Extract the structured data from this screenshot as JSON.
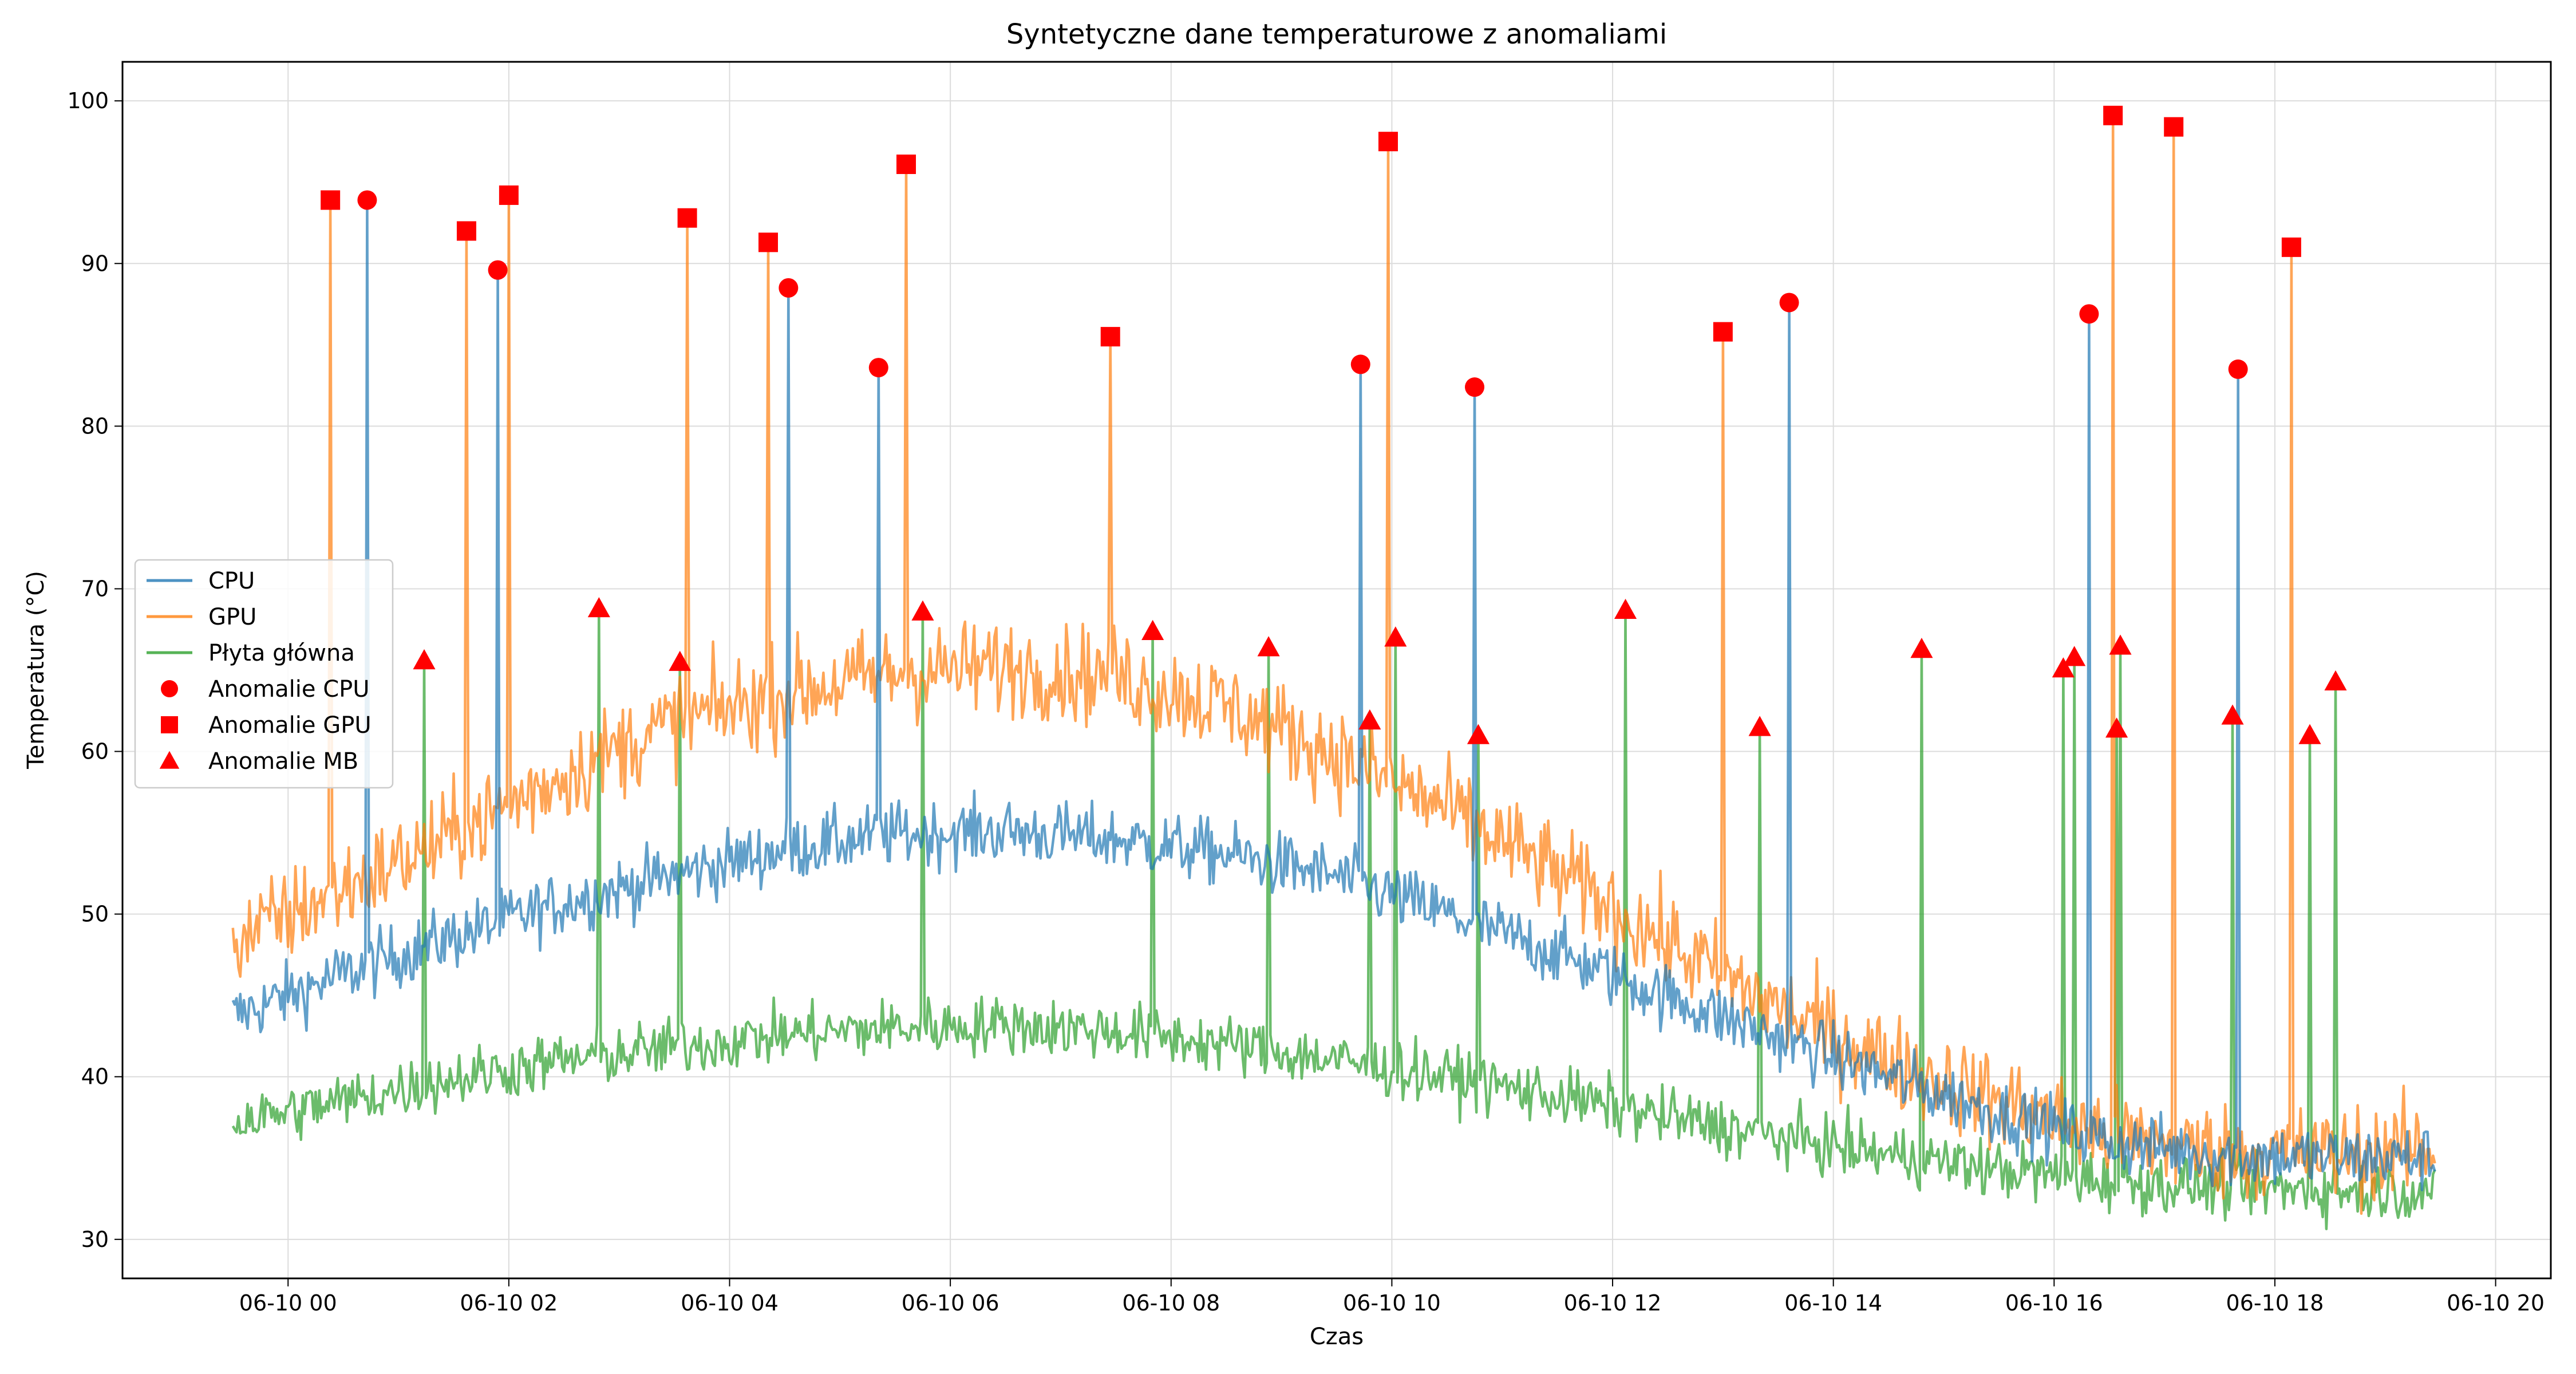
{
  "chart_data": {
    "type": "line",
    "title": "Syntetyczne dane temperaturowe z anomaliami",
    "xlabel": "Czas",
    "ylabel": "Temperatura (°C)",
    "xlim": [
      "06-09 22:30",
      "06-10 20:30"
    ],
    "ylim": [
      27.6,
      102.4
    ],
    "x_ticks": [
      "06-10 00",
      "06-10 02",
      "06-10 04",
      "06-10 06",
      "06-10 08",
      "06-10 10",
      "06-10 12",
      "06-10 14",
      "06-10 16",
      "06-10 18",
      "06-10 20"
    ],
    "y_ticks": [
      "30",
      "40",
      "50",
      "60",
      "70",
      "80",
      "90",
      "100"
    ],
    "grid": true,
    "legend_position": "center-left",
    "series": [
      {
        "name": "CPU",
        "color": "#1f77b4",
        "baseline": [
          [
            "06-09 23:30",
            43.7
          ],
          [
            "06-10 00:30",
            46.3
          ],
          [
            "06-10 01:30",
            48.6
          ],
          [
            "06-10 02:30",
            50.7
          ],
          [
            "06-10 03:30",
            52.4
          ],
          [
            "06-10 04:30",
            54.0
          ],
          [
            "06-10 05:30",
            54.9
          ],
          [
            "06-10 06:30",
            55.1
          ],
          [
            "06-10 07:30",
            54.6
          ],
          [
            "06-10 08:30",
            53.7
          ],
          [
            "06-10 09:30",
            52.3
          ],
          [
            "06-10 10:30",
            50.0
          ],
          [
            "06-10 11:30",
            47.6
          ],
          [
            "06-10 12:30",
            44.9
          ],
          [
            "06-10 13:30",
            42.4
          ],
          [
            "06-10 14:30",
            40.0
          ],
          [
            "06-10 15:30",
            37.8
          ],
          [
            "06-10 16:30",
            36.0
          ],
          [
            "06-10 17:30",
            35.2
          ],
          [
            "06-10 18:30",
            35.0
          ],
          [
            "06-10 19:27",
            35.0
          ]
        ],
        "noise": 1.0
      },
      {
        "name": "GPU",
        "color": "#ff7f0e",
        "baseline": [
          [
            "06-09 23:30",
            48.3
          ],
          [
            "06-10 00:30",
            51.6
          ],
          [
            "06-10 01:30",
            54.8
          ],
          [
            "06-10 02:30",
            58.6
          ],
          [
            "06-10 03:30",
            61.8
          ],
          [
            "06-10 04:30",
            63.6
          ],
          [
            "06-10 05:30",
            64.8
          ],
          [
            "06-10 06:30",
            65.2
          ],
          [
            "06-10 07:30",
            64.6
          ],
          [
            "06-10 08:30",
            62.8
          ],
          [
            "06-10 09:30",
            59.8
          ],
          [
            "06-10 10:30",
            56.4
          ],
          [
            "06-10 11:30",
            52.5
          ],
          [
            "06-10 12:30",
            48.2
          ],
          [
            "06-10 13:30",
            44.2
          ],
          [
            "06-10 14:30",
            41.0
          ],
          [
            "06-10 15:30",
            38.5
          ],
          [
            "06-10 16:30",
            36.3
          ],
          [
            "06-10 17:30",
            35.4
          ],
          [
            "06-10 18:30",
            35.2
          ],
          [
            "06-10 19:27",
            35.5
          ]
        ],
        "noise": 1.5
      },
      {
        "name": "Płyta główna",
        "color": "#2ca02c",
        "baseline": [
          [
            "06-09 23:30",
            37.2
          ],
          [
            "06-10 00:30",
            38.5
          ],
          [
            "06-10 01:30",
            39.9
          ],
          [
            "06-10 02:30",
            41.0
          ],
          [
            "06-10 03:30",
            41.8
          ],
          [
            "06-10 04:30",
            42.6
          ],
          [
            "06-10 05:30",
            43.0
          ],
          [
            "06-10 06:30",
            43.2
          ],
          [
            "06-10 07:30",
            42.8
          ],
          [
            "06-10 08:30",
            42.0
          ],
          [
            "06-10 09:30",
            41.0
          ],
          [
            "06-10 10:30",
            40.0
          ],
          [
            "06-10 11:30",
            38.8
          ],
          [
            "06-10 12:30",
            37.5
          ],
          [
            "06-10 13:30",
            36.3
          ],
          [
            "06-10 14:30",
            35.2
          ],
          [
            "06-10 15:30",
            34.3
          ],
          [
            "06-10 16:30",
            33.6
          ],
          [
            "06-10 17:30",
            33.2
          ],
          [
            "06-10 18:30",
            33.0
          ],
          [
            "06-10 19:27",
            33.0
          ]
        ],
        "noise": 0.9
      }
    ],
    "anomalies": [
      {
        "name": "Anomalie CPU",
        "series": "CPU",
        "marker": "circle",
        "color": "#ff0000",
        "points": [
          [
            "06-10 00:43",
            93.9
          ],
          [
            "06-10 01:54",
            89.6
          ],
          [
            "06-10 04:32",
            88.5
          ],
          [
            "06-10 05:21",
            83.6
          ],
          [
            "06-10 09:43",
            83.8
          ],
          [
            "06-10 10:45",
            82.4
          ],
          [
            "06-10 13:36",
            87.6
          ],
          [
            "06-10 16:19",
            86.9
          ],
          [
            "06-10 17:40",
            83.5
          ]
        ]
      },
      {
        "name": "Anomalie GPU",
        "series": "GPU",
        "marker": "square",
        "color": "#ff0000",
        "points": [
          [
            "06-10 00:23",
            93.9
          ],
          [
            "06-10 01:37",
            92.0
          ],
          [
            "06-10 02:00",
            94.2
          ],
          [
            "06-10 03:37",
            92.8
          ],
          [
            "06-10 04:21",
            91.3
          ],
          [
            "06-10 05:36",
            96.1
          ],
          [
            "06-10 07:27",
            85.5
          ],
          [
            "06-10 09:58",
            97.5
          ],
          [
            "06-10 13:00",
            85.8
          ],
          [
            "06-10 16:32",
            99.1
          ],
          [
            "06-10 17:05",
            98.4
          ],
          [
            "06-10 18:09",
            91.0
          ]
        ]
      },
      {
        "name": "Anomalie MB",
        "series": "Płyta główna",
        "marker": "triangle",
        "color": "#ff0000",
        "points": [
          [
            "06-10 01:14",
            65.6
          ],
          [
            "06-10 02:49",
            68.8
          ],
          [
            "06-10 03:33",
            65.5
          ],
          [
            "06-10 05:45",
            68.6
          ],
          [
            "06-10 07:50",
            67.4
          ],
          [
            "06-10 08:53",
            66.4
          ],
          [
            "06-10 09:48",
            61.9
          ],
          [
            "06-10 10:02",
            67.0
          ],
          [
            "06-10 10:47",
            61.0
          ],
          [
            "06-10 12:07",
            68.7
          ],
          [
            "06-10 13:20",
            61.5
          ],
          [
            "06-10 14:48",
            66.3
          ],
          [
            "06-10 16:05",
            65.1
          ],
          [
            "06-10 16:11",
            65.8
          ],
          [
            "06-10 16:34",
            61.4
          ],
          [
            "06-10 16:36",
            66.5
          ],
          [
            "06-10 17:37",
            62.2
          ],
          [
            "06-10 18:19",
            61.0
          ],
          [
            "06-10 18:33",
            64.3
          ]
        ]
      }
    ]
  }
}
